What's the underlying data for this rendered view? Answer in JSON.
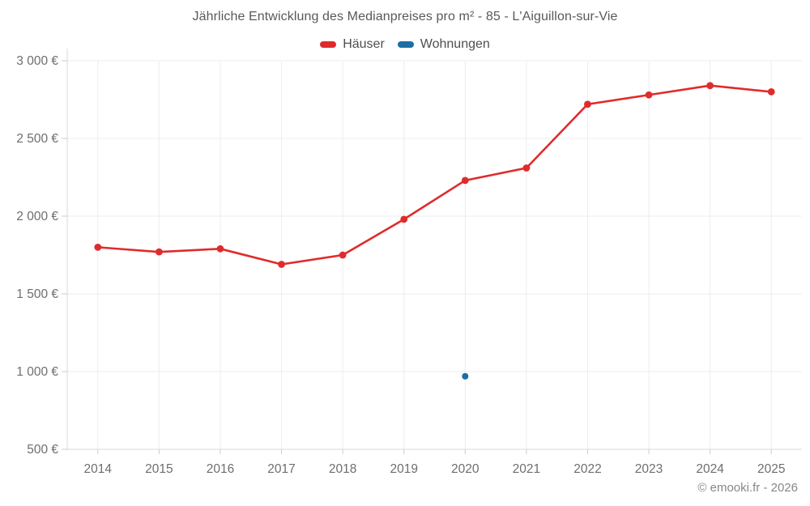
{
  "footer": {
    "copyright": "© emooki.fr - 2026"
  },
  "chart_data": {
    "type": "line",
    "title": "Jährliche Entwicklung des Medianpreises pro m² - 85 - L'Aiguillon-sur-Vie",
    "x": [
      "2014",
      "2015",
      "2016",
      "2017",
      "2018",
      "2019",
      "2020",
      "2021",
      "2022",
      "2023",
      "2024",
      "2025"
    ],
    "series": [
      {
        "name": "Häuser",
        "color": "#e02b2c",
        "values": [
          1800,
          1770,
          1790,
          1690,
          1750,
          1980,
          2230,
          2310,
          2720,
          2780,
          2840,
          2800
        ]
      },
      {
        "name": "Wohnungen",
        "color": "#1c6ea4",
        "values": [
          null,
          null,
          null,
          null,
          null,
          null,
          970,
          null,
          null,
          null,
          null,
          null
        ]
      }
    ],
    "xlabel": "",
    "ylabel": "",
    "ylim": [
      500,
      3000
    ],
    "yticks": [
      500,
      1000,
      1500,
      2000,
      2500,
      3000
    ],
    "ytick_labels": [
      "500 €",
      "1 000 €",
      "1 500 €",
      "2 000 €",
      "2 500 €",
      "3 000 €"
    ],
    "grid": true,
    "legend_position": "top-center",
    "theme": {
      "grid_color": "#ededed",
      "axis_color": "#d9d9d9",
      "tick_color": "#cccccc",
      "tick_text_color": "#6e6e6e",
      "title_color": "#595959",
      "legend_text_color": "#4f4f4f",
      "background": "#ffffff"
    }
  }
}
